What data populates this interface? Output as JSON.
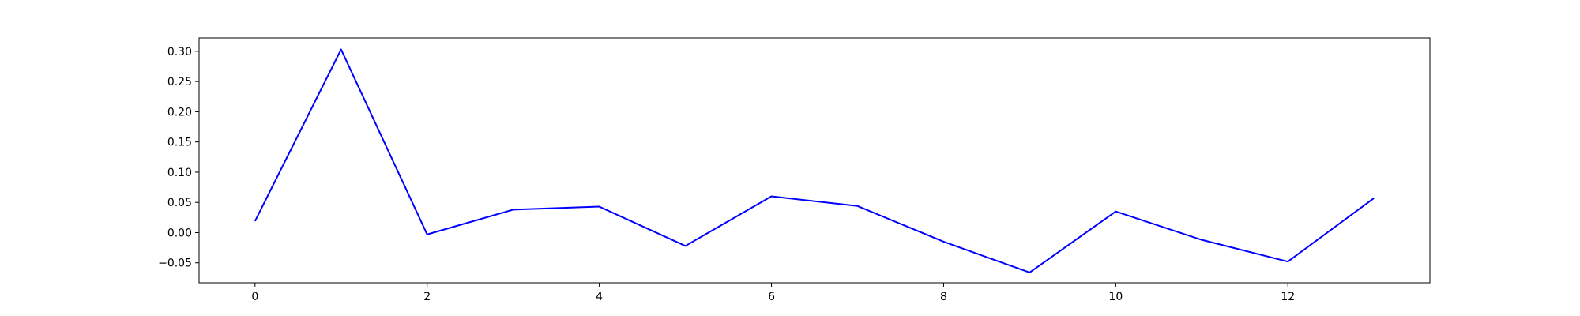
{
  "chart_data": {
    "type": "line",
    "title": "",
    "xlabel": "",
    "ylabel": "",
    "xlim": [
      -0.65,
      13.65
    ],
    "ylim": [
      -0.083,
      0.322
    ],
    "x_ticks": [
      0,
      2,
      4,
      6,
      8,
      10,
      12
    ],
    "y_ticks": [
      -0.05,
      0.0,
      0.05,
      0.1,
      0.15,
      0.2,
      0.25,
      0.3
    ],
    "x_tick_labels": [
      "0",
      "2",
      "4",
      "6",
      "8",
      "10",
      "12"
    ],
    "y_tick_labels": [
      "−0.05",
      "0.00",
      "0.05",
      "0.10",
      "0.15",
      "0.20",
      "0.25",
      "0.30"
    ],
    "grid": false,
    "legend": "none",
    "series": [
      {
        "color": "#0000ff",
        "x": [
          0,
          1,
          2,
          3,
          4,
          5,
          6,
          7,
          8,
          9,
          10,
          11,
          12,
          13
        ],
        "values": [
          0.019,
          0.303,
          -0.003,
          0.038,
          0.043,
          -0.022,
          0.06,
          0.044,
          -0.015,
          -0.066,
          0.035,
          -0.012,
          -0.048,
          0.057
        ]
      }
    ]
  }
}
